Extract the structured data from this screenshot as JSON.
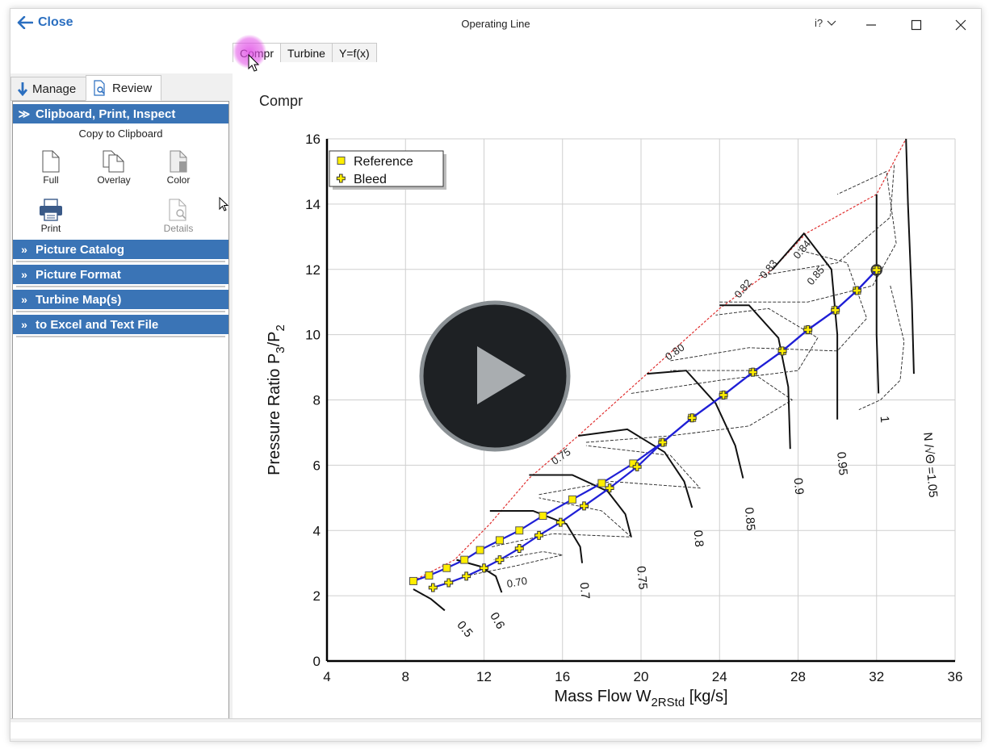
{
  "window": {
    "close_label": "Close",
    "title": "Operating Line",
    "help_label": "i?"
  },
  "top_tabs": [
    {
      "label": "Compr",
      "active": true
    },
    {
      "label": "Turbine",
      "active": false
    },
    {
      "label": "Y=f(x)",
      "active": false
    }
  ],
  "left_tabs": [
    {
      "label": "Manage",
      "icon": "down-arrow-icon"
    },
    {
      "label": "Review",
      "icon": "page-search-icon"
    }
  ],
  "sidebar": {
    "sections": [
      {
        "label": "Clipboard, Print, Inspect",
        "expanded": true
      },
      {
        "label": "Picture Catalog",
        "expanded": false
      },
      {
        "label": "Picture Format",
        "expanded": false
      },
      {
        "label": "Turbine Map(s)",
        "expanded": false
      },
      {
        "label": "to Excel and Text File",
        "expanded": false
      }
    ],
    "clipboard_caption": "Copy to Clipboard",
    "tools": [
      {
        "label": "Full",
        "icon": "page-icon",
        "enabled": true
      },
      {
        "label": "Overlay",
        "icon": "pages-icon",
        "enabled": true
      },
      {
        "label": "Color",
        "icon": "color-page-icon",
        "enabled": true
      },
      {
        "label": "Print",
        "icon": "printer-icon",
        "enabled": true
      },
      {
        "label": "Details",
        "icon": "page-search-icon",
        "enabled": false
      }
    ]
  },
  "graph_label": "Compr",
  "chart_data": {
    "type": "line",
    "xlabel": "Mass Flow W",
    "xlabel_sub": "2RStd",
    "xlabel_unit": " [kg/s]",
    "ylabel_parts": [
      "Pressure Ratio P",
      "3",
      "/P",
      "2"
    ],
    "xlim": [
      4,
      36
    ],
    "ylim": [
      0,
      16
    ],
    "x_ticks": [
      4,
      8,
      12,
      16,
      20,
      24,
      28,
      32,
      36
    ],
    "y_ticks": [
      0,
      2,
      4,
      6,
      8,
      10,
      12,
      14,
      16
    ],
    "grid": true,
    "legend_position": "top-left",
    "series": [
      {
        "name": "Reference",
        "marker": "square",
        "color": "#1f1fd6",
        "marker_color": "#ffee00",
        "points": [
          [
            8.4,
            2.45
          ],
          [
            9.2,
            2.62
          ],
          [
            10.1,
            2.85
          ],
          [
            11.0,
            3.1
          ],
          [
            11.8,
            3.4
          ],
          [
            12.8,
            3.7
          ],
          [
            13.8,
            4.0
          ],
          [
            15.0,
            4.45
          ],
          [
            16.5,
            4.95
          ],
          [
            18.0,
            5.45
          ],
          [
            19.6,
            6.05
          ],
          [
            21.1,
            6.7
          ],
          [
            22.6,
            7.45
          ],
          [
            24.2,
            8.15
          ],
          [
            25.7,
            8.85
          ],
          [
            27.2,
            9.5
          ],
          [
            28.5,
            10.15
          ],
          [
            29.9,
            10.75
          ],
          [
            31.0,
            11.35
          ],
          [
            32.0,
            11.98
          ]
        ]
      },
      {
        "name": "Bleed",
        "marker": "plus",
        "color": "#1f1fd6",
        "marker_color": "#ffee00",
        "points": [
          [
            9.4,
            2.25
          ],
          [
            10.2,
            2.4
          ],
          [
            11.1,
            2.6
          ],
          [
            12.0,
            2.85
          ],
          [
            12.8,
            3.1
          ],
          [
            13.8,
            3.45
          ],
          [
            14.8,
            3.85
          ],
          [
            15.9,
            4.25
          ],
          [
            17.1,
            4.75
          ],
          [
            18.4,
            5.3
          ],
          [
            19.8,
            5.95
          ],
          [
            21.1,
            6.7
          ],
          [
            22.6,
            7.45
          ],
          [
            24.2,
            8.15
          ],
          [
            25.7,
            8.85
          ],
          [
            27.2,
            9.5
          ],
          [
            28.5,
            10.15
          ],
          [
            29.9,
            10.75
          ],
          [
            31.0,
            11.35
          ],
          [
            32.0,
            11.98
          ]
        ]
      }
    ],
    "speed_labels": [
      "0.5",
      "0.6",
      "0.7",
      "0.75",
      "0.8",
      "0.85",
      "0.9",
      "0.95",
      "1",
      "N /√Θ =1.05"
    ],
    "efficiency_labels": [
      "0.70",
      "0.75",
      "0.80",
      "0.82",
      "0.83",
      "0.84",
      "0.85"
    ],
    "colors": {
      "operating_line": "#1f1fd6",
      "surge_line": "#e03030",
      "speed_lines": "#111111",
      "marker_fill": "#ffee00"
    }
  },
  "play_overlay": {
    "icon": "play-icon"
  }
}
